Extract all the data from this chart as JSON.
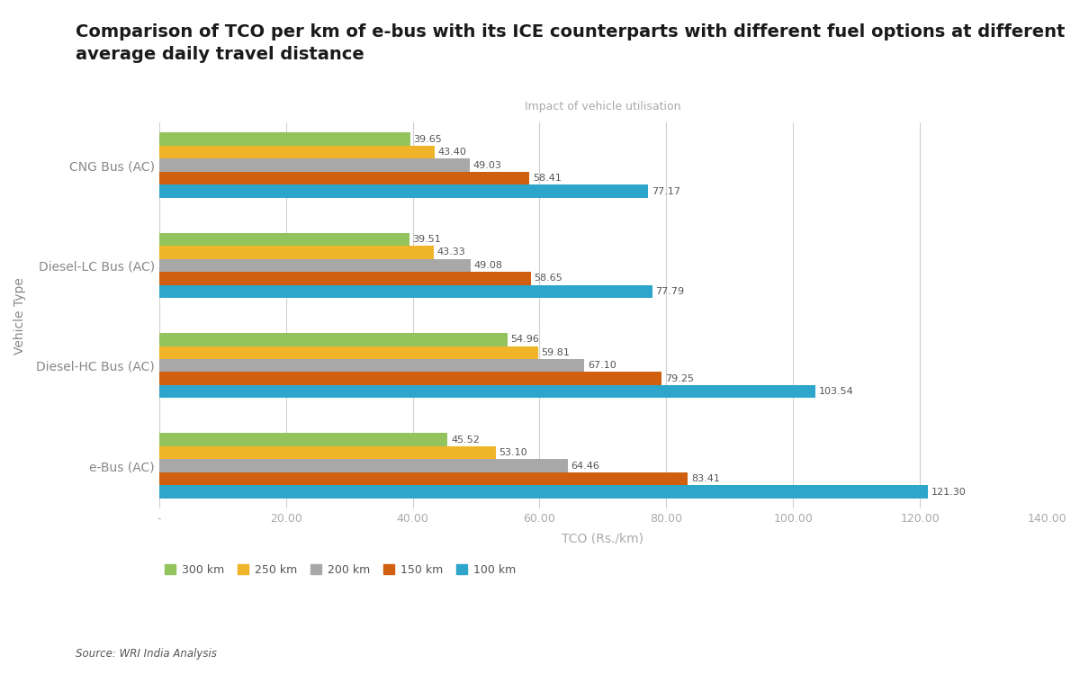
{
  "title_line1": "Comparison of TCO per km of e-bus with its ICE counterparts with different fuel options at different",
  "title_line2": "average daily travel distance",
  "subtitle": "Impact of vehicle utilisation",
  "xlabel": "TCO (Rs./km)",
  "ylabel": "Vehicle Type",
  "source": "Source: WRI India Analysis",
  "categories": [
    "CNG Bus (AC)",
    "Diesel-LC Bus (AC)",
    "Diesel-HC Bus (AC)",
    "e-Bus (AC)"
  ],
  "series": [
    {
      "label": "300 km",
      "color": "#92c35c",
      "values": [
        39.65,
        39.51,
        54.96,
        45.52
      ]
    },
    {
      "label": "250 km",
      "color": "#f0b429",
      "values": [
        43.4,
        43.33,
        59.81,
        53.1
      ]
    },
    {
      "label": "200 km",
      "color": "#a8a8a8",
      "values": [
        49.03,
        49.08,
        67.1,
        64.46
      ]
    },
    {
      "label": "150 km",
      "color": "#d06010",
      "values": [
        58.41,
        58.65,
        79.25,
        83.41
      ]
    },
    {
      "label": "100 km",
      "color": "#2ea6cc",
      "values": [
        77.17,
        77.79,
        103.54,
        121.3
      ]
    }
  ],
  "xlim": [
    0,
    140
  ],
  "xticks": [
    0,
    20,
    40,
    60,
    80,
    100,
    120,
    140
  ],
  "xticklabels": [
    "-",
    "20.00",
    "40.00",
    "60.00",
    "80.00",
    "100.00",
    "120.00",
    "140.00"
  ],
  "bg_color": "#ffffff",
  "plot_bg_color": "#ffffff",
  "grid_color": "#d0d0d0",
  "title_fontsize": 14,
  "label_fontsize": 10,
  "tick_fontsize": 9,
  "bar_height": 0.13,
  "value_label_fontsize": 8
}
